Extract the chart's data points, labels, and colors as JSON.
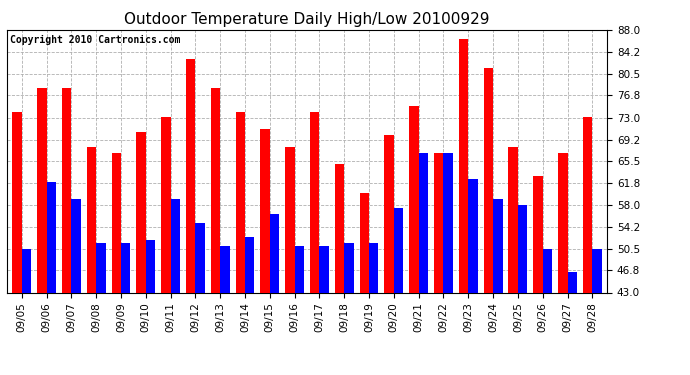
{
  "title": "Outdoor Temperature Daily High/Low 20100929",
  "copyright": "Copyright 2010 Cartronics.com",
  "dates": [
    "09/05",
    "09/06",
    "09/07",
    "09/08",
    "09/09",
    "09/10",
    "09/11",
    "09/12",
    "09/13",
    "09/14",
    "09/15",
    "09/16",
    "09/17",
    "09/18",
    "09/19",
    "09/20",
    "09/21",
    "09/22",
    "09/23",
    "09/24",
    "09/25",
    "09/26",
    "09/27",
    "09/28"
  ],
  "highs": [
    74.0,
    78.0,
    78.0,
    68.0,
    67.0,
    70.5,
    73.0,
    83.0,
    78.0,
    74.0,
    71.0,
    68.0,
    74.0,
    65.0,
    60.0,
    70.0,
    75.0,
    67.0,
    86.5,
    81.5,
    68.0,
    63.0,
    67.0,
    73.0
  ],
  "lows": [
    50.5,
    62.0,
    59.0,
    51.5,
    51.5,
    52.0,
    59.0,
    55.0,
    51.0,
    52.5,
    56.5,
    51.0,
    51.0,
    51.5,
    51.5,
    57.5,
    67.0,
    67.0,
    62.5,
    59.0,
    58.0,
    50.5,
    46.5,
    50.5
  ],
  "ymin": 43.0,
  "ymax": 88.0,
  "yticks": [
    43.0,
    46.8,
    50.5,
    54.2,
    58.0,
    61.8,
    65.5,
    69.2,
    73.0,
    76.8,
    80.5,
    84.2,
    88.0
  ],
  "bar_color_high": "#ff0000",
  "bar_color_low": "#0000ff",
  "background_color": "#ffffff",
  "plot_bg_color": "#ffffff",
  "grid_color": "#b0b0b0",
  "title_fontsize": 11,
  "copyright_fontsize": 7,
  "tick_fontsize": 7.5
}
